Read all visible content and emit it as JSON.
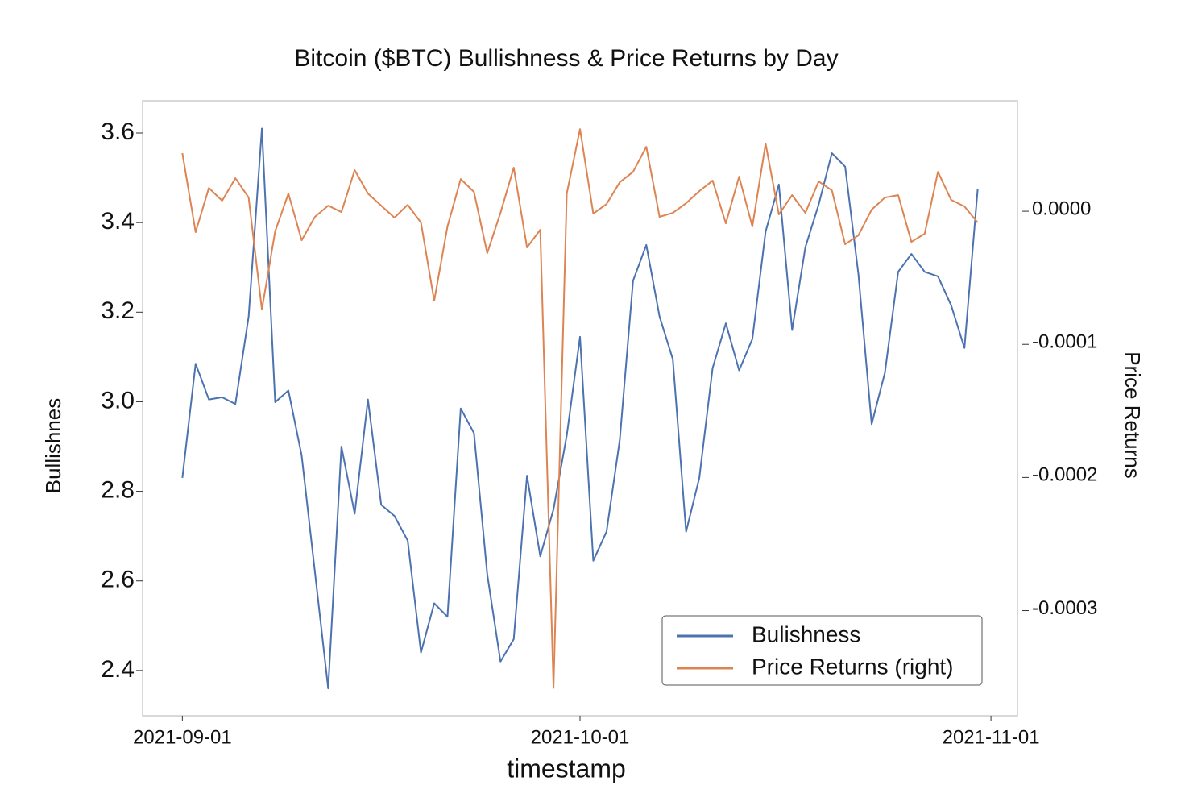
{
  "chart_data": {
    "type": "line",
    "title": "Bitcoin ($BTC) Bullishness & Price Returns by Day",
    "xlabel": "timestamp",
    "ylabel": "Bullishnes",
    "y2label": "Price Returns",
    "x": [
      "2021-09-01",
      "2021-09-02",
      "2021-09-03",
      "2021-09-04",
      "2021-09-05",
      "2021-09-06",
      "2021-09-07",
      "2021-09-08",
      "2021-09-09",
      "2021-09-10",
      "2021-09-11",
      "2021-09-12",
      "2021-09-13",
      "2021-09-14",
      "2021-09-15",
      "2021-09-16",
      "2021-09-17",
      "2021-09-18",
      "2021-09-19",
      "2021-09-20",
      "2021-09-21",
      "2021-09-22",
      "2021-09-23",
      "2021-09-24",
      "2021-09-25",
      "2021-09-26",
      "2021-09-27",
      "2021-09-28",
      "2021-09-29",
      "2021-09-30",
      "2021-10-01",
      "2021-10-02",
      "2021-10-03",
      "2021-10-04",
      "2021-10-05",
      "2021-10-06",
      "2021-10-07",
      "2021-10-08",
      "2021-10-09",
      "2021-10-10",
      "2021-10-11",
      "2021-10-12",
      "2021-10-13",
      "2021-10-14",
      "2021-10-15",
      "2021-10-16",
      "2021-10-17",
      "2021-10-18",
      "2021-10-19",
      "2021-10-20",
      "2021-10-21",
      "2021-10-22",
      "2021-10-23",
      "2021-10-24",
      "2021-10-25",
      "2021-10-26",
      "2021-10-27",
      "2021-10-28",
      "2021-10-29",
      "2021-10-30",
      "2021-10-31"
    ],
    "xlim": [
      "2021-08-29",
      "2021-11-03"
    ],
    "xticks": [
      "2021-09-01",
      "2021-10-01",
      "2021-11-01"
    ],
    "ylim": [
      2.299,
      3.672
    ],
    "yticks": [
      2.4,
      2.6,
      2.8,
      {
        "value": 3,
        "label": "3.0"
      },
      3.2,
      3.4,
      3.6
    ],
    "y2lim": [
      -0.000379,
      8.3e-05
    ],
    "y2ticks": [
      {
        "value": -0.0003,
        "label": "-0.0003"
      },
      {
        "value": -0.0002,
        "label": "-0.0002"
      },
      {
        "value": -0.0001,
        "label": "-0.0001"
      },
      {
        "value": 0,
        "label": "0.0000"
      }
    ],
    "legend": "lower right",
    "series": [
      {
        "name": "Bulishness",
        "color": "#4c72b0",
        "values": [
          2.83,
          3.085,
          3.005,
          3.01,
          2.995,
          3.19,
          3.61,
          2.999,
          3.025,
          2.88,
          2.62,
          2.36,
          2.9,
          2.75,
          3.005,
          2.77,
          2.745,
          2.69,
          2.44,
          2.55,
          2.52,
          2.985,
          2.93,
          2.615,
          2.42,
          2.47,
          2.835,
          2.655,
          2.76,
          2.925,
          3.145,
          2.645,
          2.71,
          2.915,
          3.27,
          3.35,
          3.19,
          3.095,
          2.71,
          2.83,
          3.075,
          3.175,
          3.07,
          3.14,
          3.38,
          3.485,
          3.16,
          3.345,
          3.44,
          3.555,
          3.525,
          3.285,
          2.95,
          3.065,
          3.29,
          3.33,
          3.29,
          3.28,
          3.215,
          3.12,
          3.475
        ]
      },
      {
        "name": "Price Returns (right)",
        "color": "#dd8452",
        "axis": "y2",
        "values": [
          4.36e-05,
          -1.57e-05,
          1.75e-05,
          7.9e-06,
          2.48e-05,
          1.03e-05,
          -7.38e-05,
          -1.51e-05,
          1.33e-05,
          -2.18e-05,
          -4.2e-06,
          4.2e-06,
          -6e-07,
          3.09e-05,
          1.33e-05,
          4.2e-06,
          -4.8e-06,
          4.8e-06,
          -8.5e-06,
          -6.72e-05,
          -1.15e-05,
          2.42e-05,
          1.45e-05,
          -3.15e-05,
          -1.2e-06,
          3.27e-05,
          -2.72e-05,
          -1.39e-05,
          -0.0003581,
          1.33e-05,
          6.17e-05,
          -1.8e-06,
          5.4e-06,
          2.18e-05,
          2.96e-05,
          4.84e-05,
          -4.2e-06,
          -1.2e-06,
          6e-06,
          1.51e-05,
          2.3e-05,
          -9.1e-06,
          2.6e-05,
          -1.15e-05,
          5.08e-05,
          -2.4e-06,
          1.21e-05,
          -1.2e-06,
          2.24e-05,
          1.57e-05,
          -2.48e-05,
          -1.81e-05,
          1.2e-06,
          1.03e-05,
          1.21e-05,
          -2.3e-05,
          -1.69e-05,
          2.96e-05,
          8.5e-06,
          3.6e-06,
          -8.5e-06
        ]
      }
    ]
  }
}
